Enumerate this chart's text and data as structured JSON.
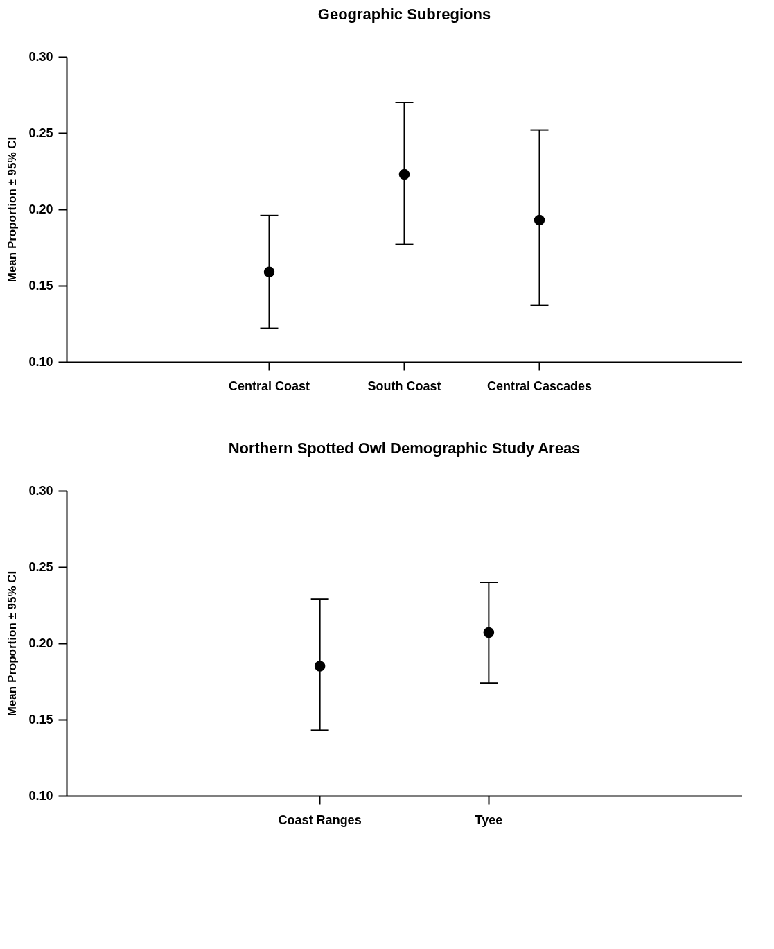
{
  "chart_data": [
    {
      "type": "scatter",
      "title": "Geographic Subregions",
      "ylabel": "Mean Proportion ± 95% CI",
      "categories": [
        "Central Coast",
        "South Coast",
        "Central Cascades"
      ],
      "values": [
        0.159,
        0.223,
        0.193
      ],
      "errors": [
        [
          0.122,
          0.196
        ],
        [
          0.177,
          0.27
        ],
        [
          0.137,
          0.252
        ]
      ],
      "color": "#000000",
      "marker": "circle",
      "grid": false,
      "ylim": [
        0.1,
        0.3
      ],
      "yticks": [
        {
          "value": 0.1,
          "label": "0.10"
        },
        {
          "value": 0.15,
          "label": "0.15"
        },
        {
          "value": 0.2,
          "label": "0.20"
        },
        {
          "value": 0.25,
          "label": "0.25"
        },
        {
          "value": 0.3,
          "label": "0.30"
        }
      ]
    },
    {
      "type": "scatter",
      "title": "Northern Spotted Owl Demographic Study Areas",
      "ylabel": "Mean Proportion ± 95% CI",
      "categories": [
        "Coast Ranges",
        "Tyee"
      ],
      "values": [
        0.185,
        0.207
      ],
      "errors": [
        [
          0.143,
          0.229
        ],
        [
          0.174,
          0.24
        ]
      ],
      "color": "#000000",
      "marker": "circle",
      "grid": false,
      "ylim": [
        0.1,
        0.3
      ],
      "yticks": [
        {
          "value": 0.1,
          "label": "0.10"
        },
        {
          "value": 0.15,
          "label": "0.15"
        },
        {
          "value": 0.2,
          "label": "0.20"
        },
        {
          "value": 0.25,
          "label": "0.25"
        },
        {
          "value": 0.3,
          "label": "0.30"
        }
      ]
    }
  ]
}
